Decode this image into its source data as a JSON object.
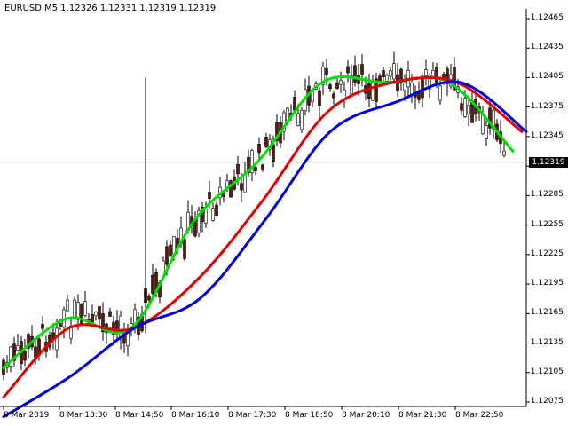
{
  "symbol_label": "EURUSD,M5  1.12326 1.12331 1.12319 1.12319",
  "current_price": "1.12319",
  "price_axis": [
    "1.12465",
    "1.12435",
    "1.12405",
    "1.12375",
    "1.12345",
    "1.12315",
    "1.12285",
    "1.12255",
    "1.12225",
    "1.12195",
    "1.12165",
    "1.12135",
    "1.12105",
    "1.12075"
  ],
  "time_axis": [
    "8 Mar 2019",
    "8 Mar 13:30",
    "8 Mar 14:50",
    "8 Mar 16:10",
    "8 Mar 17:30",
    "8 Mar 18:50",
    "8 Mar 20:10",
    "8 Mar 21:30",
    "8 Mar 22:50"
  ],
  "colors": {
    "background": "#ffffff",
    "candle_body": "#5a1a0a",
    "wick": "#000000",
    "fast_ma": "#00e000",
    "mid_ma": "#e00000",
    "slow_ma": "#0000d8",
    "axis": "#000000",
    "current_price_line": "#c0c0c0"
  },
  "chart_data": {
    "type": "line",
    "title": "",
    "ylim": [
      1.1206,
      1.1248
    ],
    "current_price": 1.12319,
    "x": [
      "8 Mar 2019",
      "8 Mar 13:30",
      "8 Mar 14:50",
      "8 Mar 16:10",
      "8 Mar 17:30",
      "8 Mar 18:50",
      "8 Mar 20:10",
      "8 Mar 21:30",
      "8 Mar 22:50"
    ],
    "series": [
      {
        "color": "#00e000",
        "values": [
          1.1211,
          1.1216,
          1.1215,
          1.1226,
          1.1232,
          1.124,
          1.124,
          1.124,
          1.1233
        ]
      },
      {
        "color": "#e00000",
        "values": [
          1.1208,
          1.1215,
          1.1215,
          1.122,
          1.1228,
          1.1237,
          1.124,
          1.124,
          1.1235
        ]
      },
      {
        "color": "#0000d8",
        "values": [
          1.1206,
          1.121,
          1.1215,
          1.1218,
          1.1226,
          1.1235,
          1.1238,
          1.124,
          1.1235
        ]
      }
    ]
  }
}
